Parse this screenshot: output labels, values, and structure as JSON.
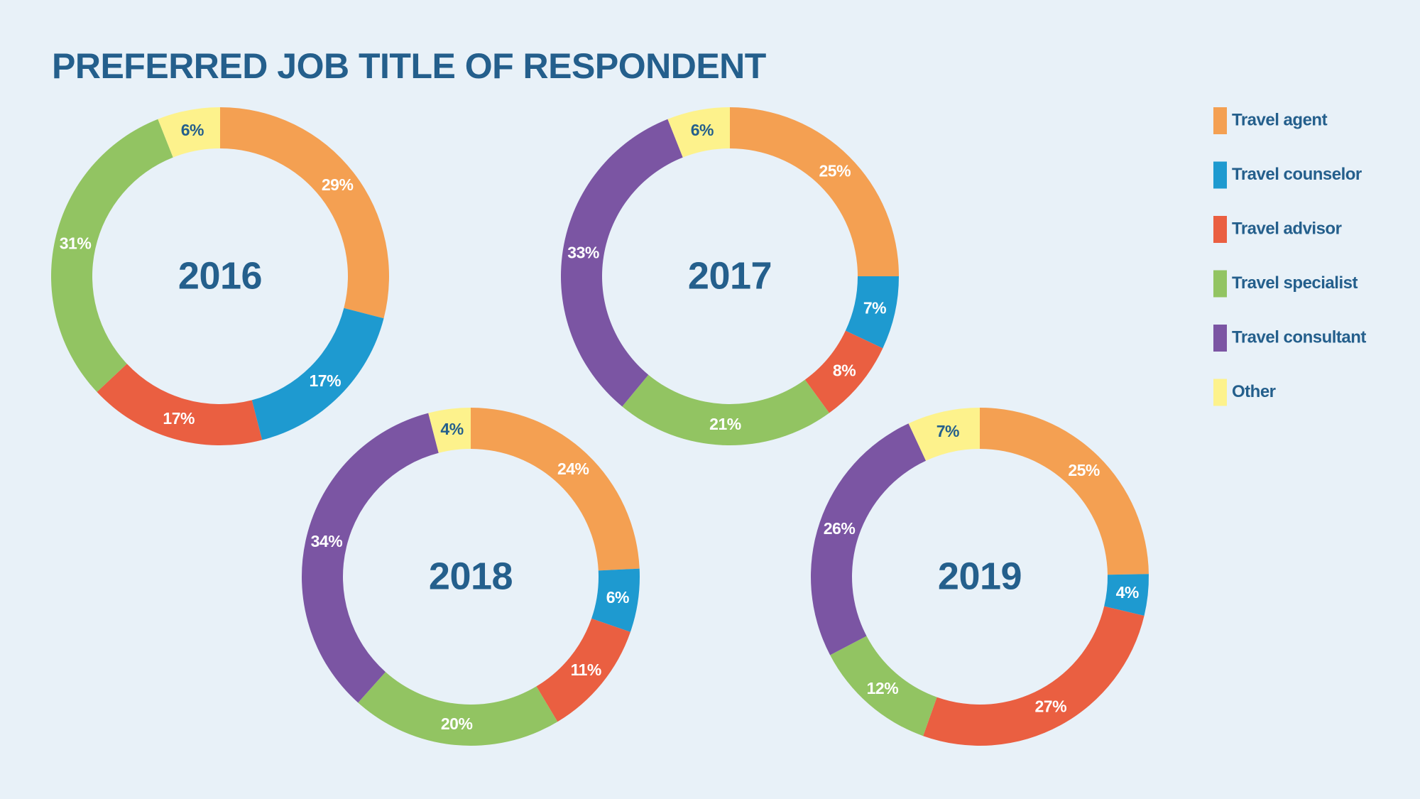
{
  "title": "PREFERRED JOB TITLE OF RESPONDENT",
  "legend": {
    "labels": [
      "Travel agent",
      "Travel counselor",
      "Travel advisor",
      "Travel specialist",
      "Travel consultant",
      "Other"
    ],
    "colors": [
      "#f4a052",
      "#1e9ad0",
      "#ea5f41",
      "#92c462",
      "#7b55a3",
      "#fdf28c"
    ]
  },
  "chart_data": [
    {
      "type": "pie",
      "title": "2016",
      "values": [
        29,
        17,
        17,
        31,
        null,
        6
      ],
      "value_labels": [
        "29%",
        "17%",
        "17%",
        "31%",
        null,
        "6%"
      ]
    },
    {
      "type": "pie",
      "title": "2017",
      "values": [
        25,
        7,
        8,
        21,
        33,
        6
      ],
      "value_labels": [
        "25%",
        "7%",
        "8%",
        "21%",
        "33%",
        "6%"
      ]
    },
    {
      "type": "pie",
      "title": "2018",
      "values": [
        24,
        6,
        11,
        20,
        34,
        4
      ],
      "value_labels": [
        "24%",
        "6%",
        "11%",
        "20%",
        "34%",
        "4%"
      ]
    },
    {
      "type": "pie",
      "title": "2019",
      "values": [
        25,
        4,
        27,
        12,
        26,
        7
      ],
      "value_labels": [
        "25%",
        "4%",
        "27%",
        "12%",
        "26%",
        "7%"
      ]
    }
  ]
}
